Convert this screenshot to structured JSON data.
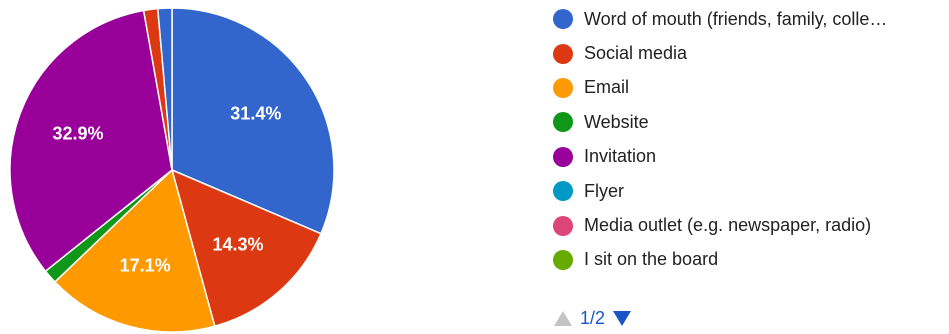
{
  "chart_data": {
    "type": "pie",
    "slices": [
      {
        "label": "Word of mouth (friends, family, colle…",
        "value": 31.4,
        "data_label": "31.4%",
        "color": "#3366cc"
      },
      {
        "label": "Social media",
        "value": 14.3,
        "data_label": "14.3%",
        "color": "#dc3912"
      },
      {
        "label": "Email",
        "value": 17.1,
        "data_label": "17.1%",
        "color": "#ff9900"
      },
      {
        "label": "Website",
        "value": 1.4,
        "data_label": "",
        "color": "#109618"
      },
      {
        "label": "Invitation",
        "value": 32.9,
        "data_label": "32.9%",
        "color": "#990099"
      },
      {
        "label": "Flyer",
        "value": 0,
        "data_label": "",
        "color": "#0099c6"
      },
      {
        "label": "Media outlet (e.g. newspaper, radio)",
        "value": 0,
        "data_label": "",
        "color": "#dd4477"
      },
      {
        "label": "I sit on the board",
        "value": 0,
        "data_label": "",
        "color": "#66aa00"
      },
      {
        "label": "",
        "value": 1.4,
        "data_label": "",
        "color": "#dc3912"
      },
      {
        "label": "",
        "value": 1.4,
        "data_label": "",
        "color": "#3366cc"
      }
    ],
    "start_angle_deg": 90,
    "direction": "clockwise"
  },
  "pager": {
    "text": "1/2",
    "up_icon": "triangle-up-icon",
    "down_icon": "triangle-down-icon"
  },
  "colors": {
    "pager_active": "#1a56c8",
    "pager_inactive": "#c4c4c4"
  }
}
